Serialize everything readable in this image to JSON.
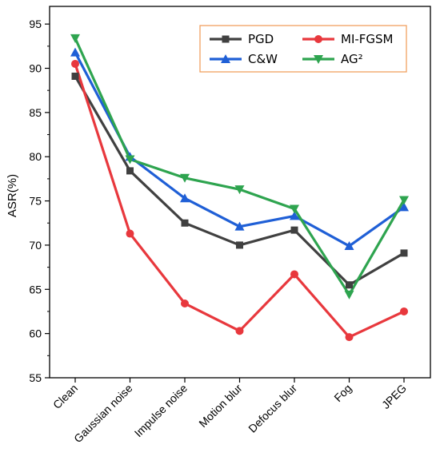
{
  "chart_data": {
    "type": "line",
    "title": "",
    "xlabel": "",
    "ylabel": "ASR(%)",
    "categories": [
      "Clean",
      "Gaussian noise",
      "Impulse noise",
      "Motion blur",
      "Defocus blur",
      "Fog",
      "JPEG"
    ],
    "ylim": [
      55,
      97
    ],
    "yticks": [
      55,
      60,
      65,
      70,
      75,
      80,
      85,
      90,
      95
    ],
    "grid": false,
    "legend_position": "top-right",
    "series": [
      {
        "name": "PGD",
        "color": "#404040",
        "marker": "square",
        "values": [
          89.1,
          78.4,
          72.5,
          70.0,
          71.7,
          65.5,
          69.1
        ]
      },
      {
        "name": "MI-FGSM",
        "color": "#e8383d",
        "marker": "circle",
        "values": [
          90.5,
          71.3,
          63.4,
          60.3,
          66.7,
          59.6,
          62.5
        ]
      },
      {
        "name": "C&W",
        "color": "#1f5fd6",
        "marker": "triangle-up",
        "values": [
          91.8,
          80.0,
          75.3,
          72.1,
          73.3,
          69.9,
          74.3
        ]
      },
      {
        "name": "AG²",
        "color": "#2ea44f",
        "marker": "triangle-down",
        "values": [
          93.4,
          79.7,
          77.6,
          76.3,
          74.1,
          64.4,
          75.1
        ]
      }
    ]
  }
}
